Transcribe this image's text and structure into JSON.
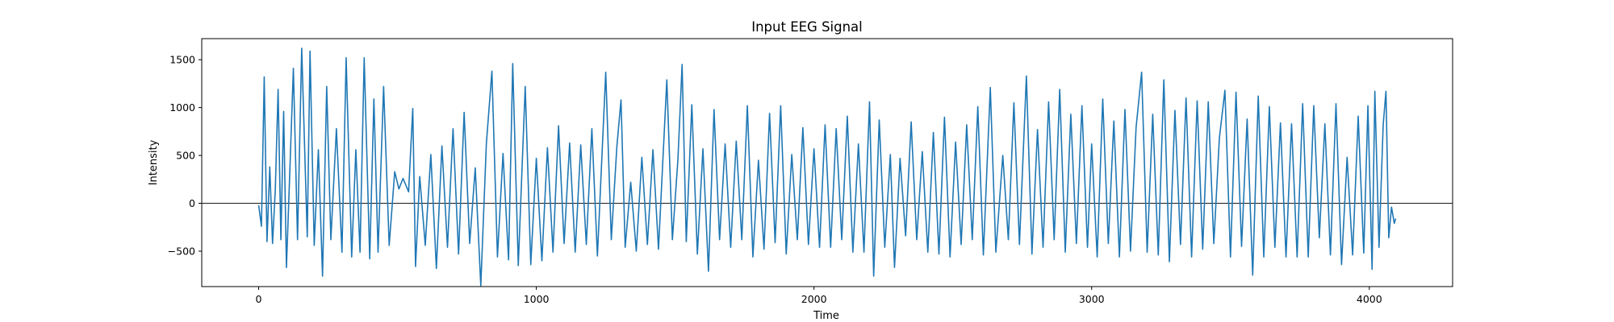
{
  "chart_data": {
    "type": "line",
    "title": "Input EEG Signal",
    "xlabel": "Time",
    "ylabel": "Intensity",
    "xlim": [
      -205,
      4300
    ],
    "ylim": [
      -870,
      1720
    ],
    "xticks": [
      0,
      1000,
      2000,
      3000,
      4000
    ],
    "yticks": [
      -500,
      0,
      500,
      1000,
      1500
    ],
    "grid": false,
    "legend": "none",
    "reference_line": {
      "y": 0,
      "color": "#1a1a1a"
    },
    "series": [
      {
        "color": "#1f77b4",
        "points": [
          [
            0,
            -20
          ],
          [
            10,
            -240
          ],
          [
            20,
            1320
          ],
          [
            30,
            -400
          ],
          [
            40,
            380
          ],
          [
            50,
            -420
          ],
          [
            60,
            150
          ],
          [
            70,
            1190
          ],
          [
            80,
            -380
          ],
          [
            90,
            960
          ],
          [
            100,
            -670
          ],
          [
            110,
            150
          ],
          [
            125,
            1410
          ],
          [
            140,
            -380
          ],
          [
            155,
            1620
          ],
          [
            175,
            -350
          ],
          [
            185,
            1590
          ],
          [
            200,
            -440
          ],
          [
            215,
            560
          ],
          [
            230,
            -760
          ],
          [
            245,
            1220
          ],
          [
            260,
            -380
          ],
          [
            280,
            780
          ],
          [
            300,
            -510
          ],
          [
            315,
            1520
          ],
          [
            335,
            -560
          ],
          [
            350,
            560
          ],
          [
            365,
            -510
          ],
          [
            380,
            1520
          ],
          [
            400,
            -580
          ],
          [
            415,
            1090
          ],
          [
            430,
            -510
          ],
          [
            450,
            1220
          ],
          [
            470,
            -440
          ],
          [
            490,
            330
          ],
          [
            505,
            150
          ],
          [
            520,
            260
          ],
          [
            540,
            120
          ],
          [
            555,
            990
          ],
          [
            565,
            -660
          ],
          [
            580,
            280
          ],
          [
            600,
            -440
          ],
          [
            620,
            510
          ],
          [
            640,
            -680
          ],
          [
            660,
            600
          ],
          [
            680,
            -460
          ],
          [
            700,
            780
          ],
          [
            720,
            -530
          ],
          [
            740,
            950
          ],
          [
            760,
            -420
          ],
          [
            780,
            370
          ],
          [
            800,
            -860
          ],
          [
            820,
            620
          ],
          [
            840,
            1380
          ],
          [
            860,
            -560
          ],
          [
            880,
            520
          ],
          [
            900,
            -590
          ],
          [
            915,
            1460
          ],
          [
            935,
            -650
          ],
          [
            960,
            1220
          ],
          [
            980,
            -640
          ],
          [
            1000,
            470
          ],
          [
            1020,
            -600
          ],
          [
            1040,
            580
          ],
          [
            1060,
            -510
          ],
          [
            1080,
            810
          ],
          [
            1100,
            -420
          ],
          [
            1120,
            630
          ],
          [
            1140,
            -510
          ],
          [
            1160,
            610
          ],
          [
            1180,
            -430
          ],
          [
            1200,
            780
          ],
          [
            1220,
            -550
          ],
          [
            1250,
            1370
          ],
          [
            1270,
            -380
          ],
          [
            1290,
            590
          ],
          [
            1305,
            1080
          ],
          [
            1320,
            -460
          ],
          [
            1340,
            220
          ],
          [
            1360,
            -500
          ],
          [
            1380,
            480
          ],
          [
            1400,
            -430
          ],
          [
            1420,
            560
          ],
          [
            1440,
            -480
          ],
          [
            1470,
            1290
          ],
          [
            1490,
            -380
          ],
          [
            1510,
            460
          ],
          [
            1525,
            1450
          ],
          [
            1540,
            -400
          ],
          [
            1560,
            1030
          ],
          [
            1580,
            -530
          ],
          [
            1600,
            570
          ],
          [
            1620,
            -710
          ],
          [
            1640,
            980
          ],
          [
            1660,
            -380
          ],
          [
            1680,
            620
          ],
          [
            1700,
            -460
          ],
          [
            1720,
            650
          ],
          [
            1740,
            -380
          ],
          [
            1760,
            1020
          ],
          [
            1780,
            -560
          ],
          [
            1800,
            450
          ],
          [
            1820,
            -480
          ],
          [
            1840,
            940
          ],
          [
            1860,
            -410
          ],
          [
            1880,
            1020
          ],
          [
            1900,
            -530
          ],
          [
            1920,
            510
          ],
          [
            1940,
            -380
          ],
          [
            1960,
            790
          ],
          [
            1980,
            -430
          ],
          [
            2000,
            570
          ],
          [
            2020,
            -460
          ],
          [
            2040,
            820
          ],
          [
            2060,
            -460
          ],
          [
            2080,
            780
          ],
          [
            2100,
            -380
          ],
          [
            2120,
            910
          ],
          [
            2140,
            -510
          ],
          [
            2160,
            620
          ],
          [
            2180,
            -510
          ],
          [
            2200,
            1060
          ],
          [
            2215,
            -760
          ],
          [
            2235,
            870
          ],
          [
            2255,
            -460
          ],
          [
            2275,
            510
          ],
          [
            2290,
            -670
          ],
          [
            2310,
            470
          ],
          [
            2330,
            -340
          ],
          [
            2350,
            850
          ],
          [
            2370,
            -380
          ],
          [
            2390,
            540
          ],
          [
            2410,
            -510
          ],
          [
            2430,
            740
          ],
          [
            2450,
            -530
          ],
          [
            2470,
            900
          ],
          [
            2490,
            -560
          ],
          [
            2510,
            640
          ],
          [
            2530,
            -430
          ],
          [
            2550,
            820
          ],
          [
            2570,
            -380
          ],
          [
            2590,
            1010
          ],
          [
            2610,
            -540
          ],
          [
            2635,
            1210
          ],
          [
            2655,
            -510
          ],
          [
            2680,
            500
          ],
          [
            2700,
            -380
          ],
          [
            2720,
            1050
          ],
          [
            2740,
            -430
          ],
          [
            2765,
            1330
          ],
          [
            2785,
            -530
          ],
          [
            2805,
            770
          ],
          [
            2825,
            -460
          ],
          [
            2845,
            1060
          ],
          [
            2865,
            -380
          ],
          [
            2885,
            1190
          ],
          [
            2905,
            -510
          ],
          [
            2925,
            930
          ],
          [
            2945,
            -420
          ],
          [
            2965,
            1020
          ],
          [
            2985,
            -460
          ],
          [
            3000,
            620
          ],
          [
            3020,
            -560
          ],
          [
            3040,
            1090
          ],
          [
            3060,
            -420
          ],
          [
            3080,
            860
          ],
          [
            3100,
            -560
          ],
          [
            3120,
            980
          ],
          [
            3140,
            -500
          ],
          [
            3160,
            790
          ],
          [
            3180,
            1370
          ],
          [
            3200,
            -510
          ],
          [
            3220,
            930
          ],
          [
            3240,
            -540
          ],
          [
            3260,
            1290
          ],
          [
            3280,
            -610
          ],
          [
            3300,
            970
          ],
          [
            3320,
            -430
          ],
          [
            3340,
            1100
          ],
          [
            3360,
            -560
          ],
          [
            3380,
            1070
          ],
          [
            3400,
            -480
          ],
          [
            3420,
            1060
          ],
          [
            3440,
            -420
          ],
          [
            3460,
            680
          ],
          [
            3480,
            1180
          ],
          [
            3500,
            -560
          ],
          [
            3520,
            1160
          ],
          [
            3540,
            -450
          ],
          [
            3560,
            880
          ],
          [
            3580,
            -750
          ],
          [
            3600,
            1120
          ],
          [
            3620,
            -560
          ],
          [
            3640,
            1010
          ],
          [
            3660,
            -460
          ],
          [
            3680,
            840
          ],
          [
            3700,
            -560
          ],
          [
            3720,
            830
          ],
          [
            3740,
            -560
          ],
          [
            3760,
            1040
          ],
          [
            3780,
            -560
          ],
          [
            3800,
            1020
          ],
          [
            3820,
            -360
          ],
          [
            3840,
            830
          ],
          [
            3860,
            -540
          ],
          [
            3880,
            1040
          ],
          [
            3900,
            -640
          ],
          [
            3920,
            480
          ],
          [
            3940,
            -540
          ],
          [
            3960,
            910
          ],
          [
            3980,
            -520
          ],
          [
            3995,
            1020
          ],
          [
            4010,
            -690
          ],
          [
            4020,
            1170
          ],
          [
            4035,
            -460
          ],
          [
            4050,
            820
          ],
          [
            4060,
            1170
          ],
          [
            4070,
            -360
          ],
          [
            4080,
            -40
          ],
          [
            4090,
            -210
          ],
          [
            4095,
            -160
          ]
        ]
      }
    ]
  }
}
